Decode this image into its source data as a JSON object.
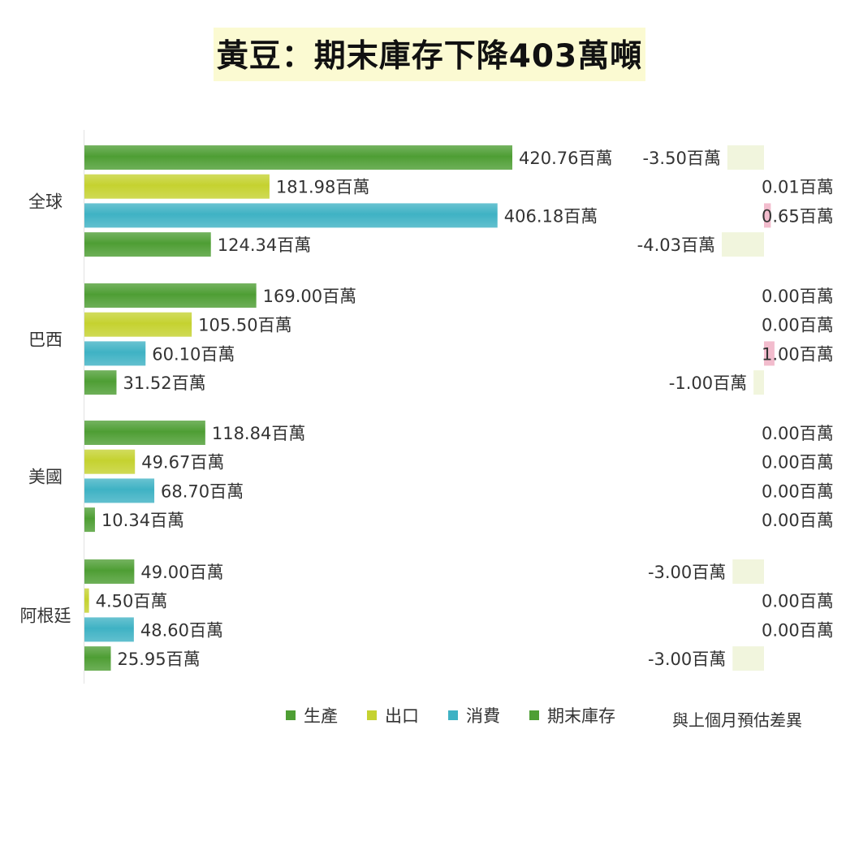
{
  "title": "黃豆：期末庫存下降403萬噸",
  "chart_data": {
    "type": "bar",
    "orientation": "horizontal",
    "categories": [
      "全球",
      "巴西",
      "美國",
      "阿根廷"
    ],
    "series": [
      {
        "name": "生產",
        "color": "#4e9e34",
        "values": [
          420.76,
          169.0,
          118.84,
          49.0
        ],
        "labels": [
          "420.76百萬",
          "169.00百萬",
          "118.84百萬",
          "49.00百萬"
        ]
      },
      {
        "name": "出口",
        "color": "#c5d230",
        "values": [
          181.98,
          105.5,
          49.67,
          4.5
        ],
        "labels": [
          "181.98百萬",
          "105.50百萬",
          "49.67百萬",
          "4.50百萬"
        ]
      },
      {
        "name": "消費",
        "color": "#3fb2c4",
        "values": [
          406.18,
          60.1,
          68.7,
          48.6
        ],
        "labels": [
          "406.18百萬",
          "60.10百萬",
          "68.70百萬",
          "48.60百萬"
        ]
      },
      {
        "name": "期末庫存",
        "color": "#4e9e34",
        "values": [
          124.34,
          31.52,
          10.34,
          25.95
        ],
        "labels": [
          "124.34百萬",
          "31.52百萬",
          "10.34百萬",
          "25.95百萬"
        ]
      }
    ],
    "diff_chart": {
      "label": "與上個月預估差異",
      "positive_color": "#f2bccd",
      "negative_color": "#f1f5dd",
      "values": [
        [
          -3.5,
          0.01,
          0.65,
          -4.03
        ],
        [
          0.0,
          0.0,
          1.0,
          -1.0
        ],
        [
          0.0,
          0.0,
          0.0,
          0.0
        ],
        [
          -3.0,
          0.0,
          0.0,
          -3.0
        ]
      ],
      "labels": [
        [
          "-3.50百萬",
          "0.01百萬",
          "0.65百萬",
          "-4.03百萬"
        ],
        [
          "0.00百萬",
          "0.00百萬",
          "1.00百萬",
          "-1.00百萬"
        ],
        [
          "0.00百萬",
          "0.00百萬",
          "0.00百萬",
          "0.00百萬"
        ],
        [
          "-3.00百萬",
          "0.00百萬",
          "0.00百萬",
          "-3.00百萬"
        ]
      ]
    },
    "legend_position": "bottom",
    "grid": false
  }
}
